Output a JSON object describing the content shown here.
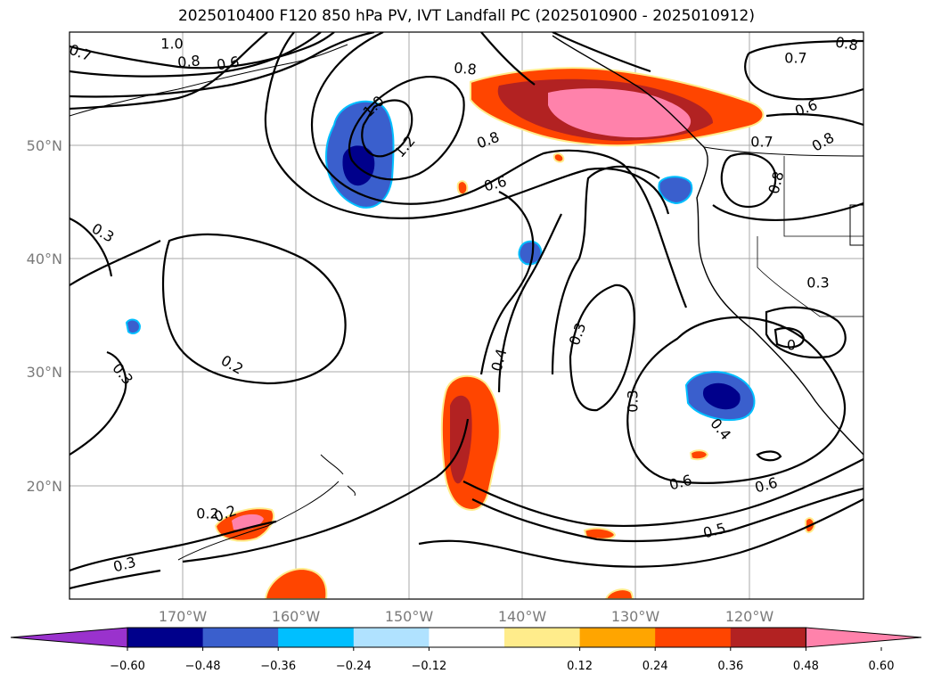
{
  "title": "2025010400 F120 850 hPa PV, IVT Landfall PC (2025010900 - 2025010912)",
  "map": {
    "lat_labels": [
      "50°N",
      "40°N",
      "30°N",
      "20°N"
    ],
    "lon_labels": [
      "170°W",
      "160°W",
      "150°W",
      "140°W",
      "130°W",
      "120°W"
    ],
    "contour_labels": [
      "1.0",
      "0.8",
      "0.6",
      "0.7",
      "0.8",
      "0.8",
      "0.7",
      "0.6",
      "0.8",
      "1.0",
      "1.2",
      "0.8",
      "0.6",
      "0.7",
      "0.8",
      "0.3",
      "0.3",
      "0.2",
      "0.3",
      "0.4",
      "0.3",
      "0.4",
      "0.6",
      "0.6",
      "0.5",
      "0.3",
      "0.2",
      "0.2",
      "0.3",
      "0"
    ]
  },
  "colorbar": {
    "colors": [
      "#9a32cd",
      "#00008b",
      "#3a5fcd",
      "#00bfff",
      "#b0e2ff",
      "#ffffff",
      "#ffec8b",
      "#ffa500",
      "#ff4500",
      "#b22222",
      "#ff82ab"
    ],
    "tick_labels": [
      "−0.60",
      "−0.48",
      "−0.36",
      "−0.24",
      "−0.12",
      "0.12",
      "0.24",
      "0.36",
      "0.48",
      "0.60"
    ]
  }
}
